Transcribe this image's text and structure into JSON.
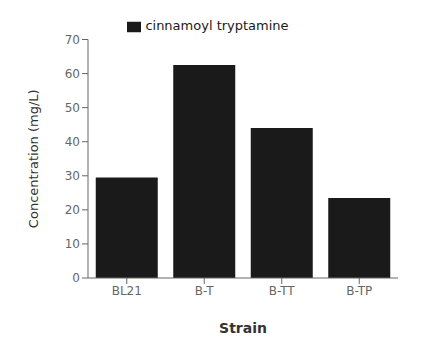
{
  "chart_data": {
    "type": "bar",
    "categories": [
      "BL21",
      "B-T",
      "B-TT",
      "B-TP"
    ],
    "series": [
      {
        "name": "cinnamoyl tryptamine",
        "color": "#1a1a1a",
        "values": [
          29.5,
          62.5,
          44.0,
          23.5
        ]
      }
    ],
    "xlabel": "Strain",
    "ylabel": "Concentration (mg/L)",
    "ylim": [
      0,
      70
    ],
    "yticks": [
      0,
      10,
      20,
      30,
      40,
      50,
      60,
      70
    ],
    "legend": "top",
    "grid": false
  }
}
